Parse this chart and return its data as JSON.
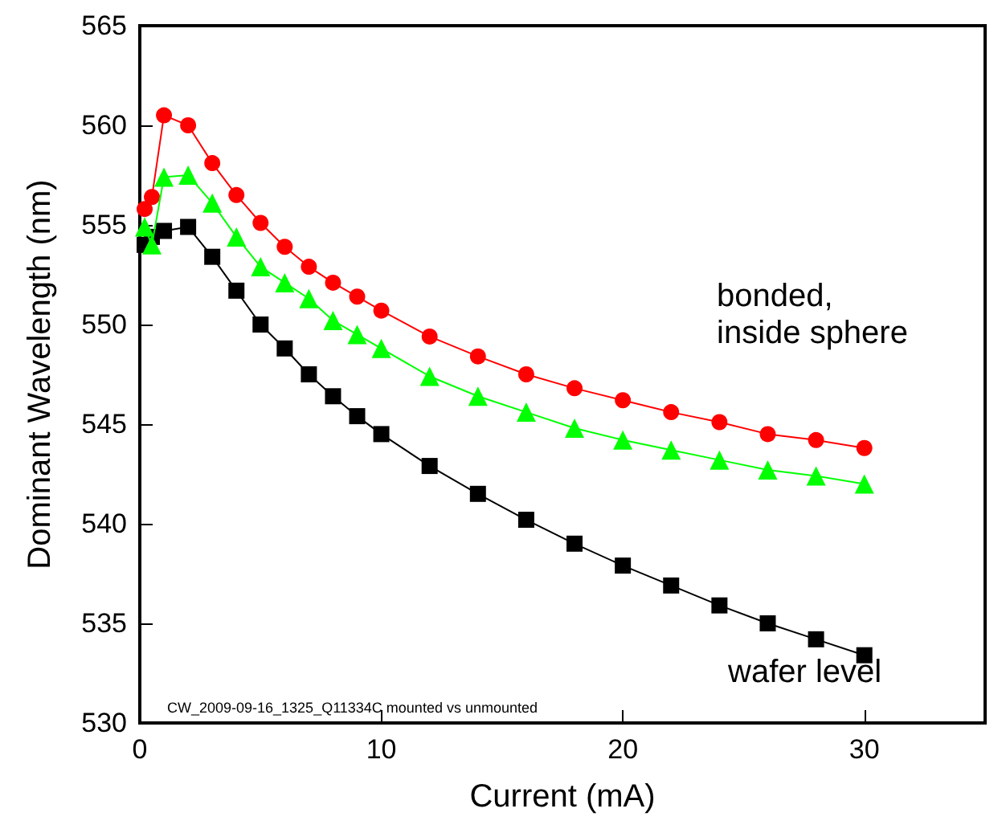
{
  "chart_data": {
    "type": "line",
    "xlabel": "Current (mA)",
    "ylabel": "Dominant Wavelength (nm)",
    "x": [
      0.2,
      0.5,
      1,
      2,
      3,
      4,
      5,
      6,
      7,
      8,
      9,
      10,
      12,
      14,
      16,
      18,
      20,
      22,
      24,
      26,
      28,
      30
    ],
    "series": [
      {
        "color": "#ff0000",
        "marker": "circle",
        "values": [
          555.8,
          556.4,
          560.5,
          560.0,
          558.1,
          556.5,
          555.1,
          553.9,
          552.9,
          552.1,
          551.4,
          550.7,
          549.4,
          548.4,
          547.5,
          546.8,
          546.2,
          545.6,
          545.1,
          544.5,
          544.2,
          543.8
        ]
      },
      {
        "color": "#00ff00",
        "marker": "triangle",
        "values": [
          554.9,
          554.0,
          557.4,
          557.5,
          556.1,
          554.4,
          552.9,
          552.1,
          551.3,
          550.2,
          549.5,
          548.8,
          547.4,
          546.4,
          545.6,
          544.8,
          544.2,
          543.7,
          543.2,
          542.7,
          542.4,
          542.0
        ]
      },
      {
        "color": "#000000",
        "marker": "square",
        "values": [
          554.0,
          554.4,
          554.7,
          554.9,
          553.4,
          551.7,
          550.0,
          548.8,
          547.5,
          546.4,
          545.4,
          544.5,
          542.9,
          541.5,
          540.2,
          539.0,
          537.9,
          536.9,
          535.9,
          535.0,
          534.2,
          533.4
        ]
      }
    ],
    "annotations": [
      "bonded,\ninside sphere",
      "wafer level",
      "CW_2009-09-16_1325_Q11334C mounted vs unmounted"
    ],
    "xlim": [
      0,
      35
    ],
    "xticks": [
      0,
      10,
      20,
      30
    ],
    "ylim": [
      530,
      565
    ],
    "yticks": [
      530,
      535,
      540,
      545,
      550,
      555,
      560,
      565
    ],
    "grid": false,
    "line_style": "solid"
  }
}
